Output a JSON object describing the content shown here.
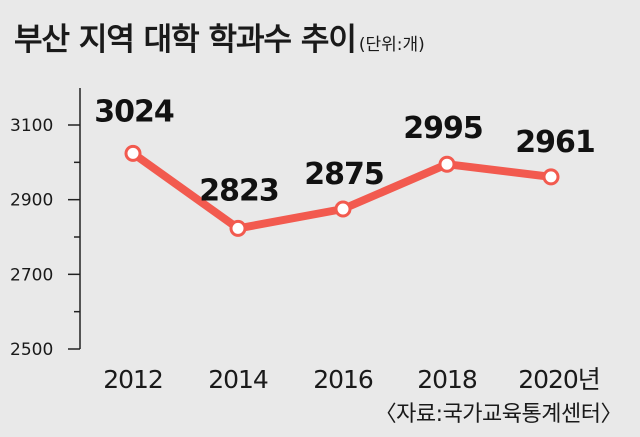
{
  "title": "부산 지역 대학 학과수 추이",
  "unit": "(단위:개)",
  "source": "〈자료:국가교육통계센터〉",
  "chart_data": {
    "type": "line",
    "title": "부산 지역 대학 학과수 추이",
    "unit": "(단위:개)",
    "categories": [
      "2012",
      "2014",
      "2016",
      "2018",
      "2020년"
    ],
    "values": [
      3024,
      2823,
      2875,
      2995,
      2961
    ],
    "data_labels": [
      "3024",
      "2823",
      "2875",
      "2995",
      "2961"
    ],
    "yticks": [
      "3100",
      "2900",
      "2700",
      "2500"
    ],
    "ytick_values": [
      3100,
      2900,
      2700,
      2500
    ],
    "ylim": [
      2500,
      3160
    ],
    "grid": false,
    "colors": {
      "line": "#f25a4f",
      "marker_fill": "#ffffff",
      "axis": "#222222"
    }
  }
}
